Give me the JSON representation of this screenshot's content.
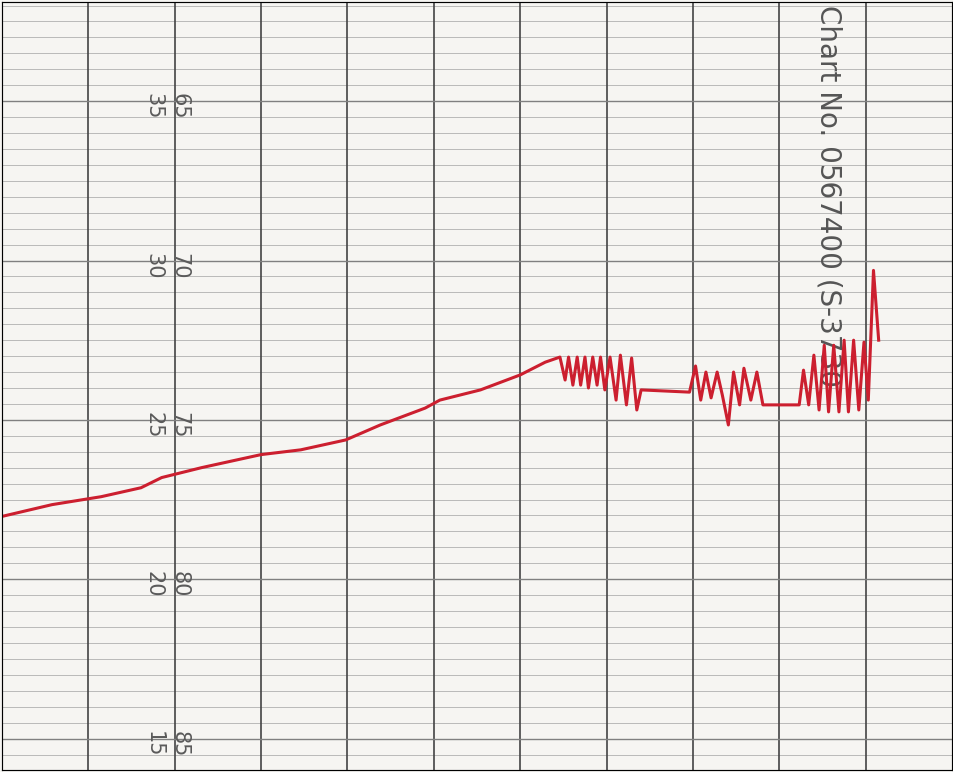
{
  "chart_data": {
    "type": "line",
    "annotations": [
      "Chart No. 0567400 (S-3730"
    ],
    "x": [
      0.0,
      0.58,
      1.15,
      1.61,
      1.85,
      2.31,
      3.0,
      3.46,
      3.98,
      4.38,
      4.9,
      5.07,
      5.54,
      6.0,
      6.29,
      6.46,
      6.52,
      6.56,
      6.61,
      6.66,
      6.7,
      6.75,
      6.79,
      6.84,
      6.89,
      6.93,
      6.98,
      7.04,
      7.11,
      7.16,
      7.23,
      7.29,
      7.35,
      7.4,
      7.96,
      8.03,
      8.09,
      8.15,
      8.21,
      8.28,
      8.34,
      8.41,
      8.47,
      8.54,
      8.59,
      8.67,
      8.74,
      8.81,
      9.23,
      9.28,
      9.34,
      9.4,
      9.46,
      9.52,
      9.57,
      9.63,
      9.69,
      9.75,
      9.8,
      9.86,
      9.92,
      9.98,
      10.03,
      10.09,
      10.15
    ],
    "values": [
      78.03,
      77.66,
      77.41,
      77.13,
      76.81,
      76.5,
      76.09,
      75.94,
      75.63,
      75.16,
      74.63,
      74.38,
      74.06,
      73.59,
      73.19,
      73.03,
      73.75,
      73.03,
      73.91,
      73.03,
      73.91,
      73.03,
      74.0,
      73.03,
      73.91,
      73.03,
      74.06,
      73.03,
      74.38,
      72.97,
      74.53,
      73.06,
      74.69,
      74.06,
      74.13,
      73.31,
      74.38,
      73.5,
      74.31,
      73.5,
      74.22,
      75.16,
      73.5,
      74.53,
      73.38,
      74.38,
      73.5,
      74.53,
      74.53,
      73.44,
      74.53,
      72.97,
      74.69,
      72.66,
      74.75,
      72.66,
      74.75,
      72.5,
      74.75,
      72.5,
      74.69,
      72.56,
      74.38,
      70.31,
      72.5
    ],
    "color": "#cc1f2f",
    "xlim": [
      0,
      11
    ],
    "xticks": [
      1,
      2,
      3,
      4,
      5,
      6,
      7,
      8,
      9,
      10
    ],
    "ylim": [
      86,
      61.875
    ],
    "yticks": [
      65,
      70,
      75,
      80,
      85
    ],
    "y2lim": [
      14,
      38.125
    ],
    "y2ticks": [
      35,
      30,
      25,
      20,
      15
    ],
    "grid": true,
    "tick_labels": "y"
  }
}
